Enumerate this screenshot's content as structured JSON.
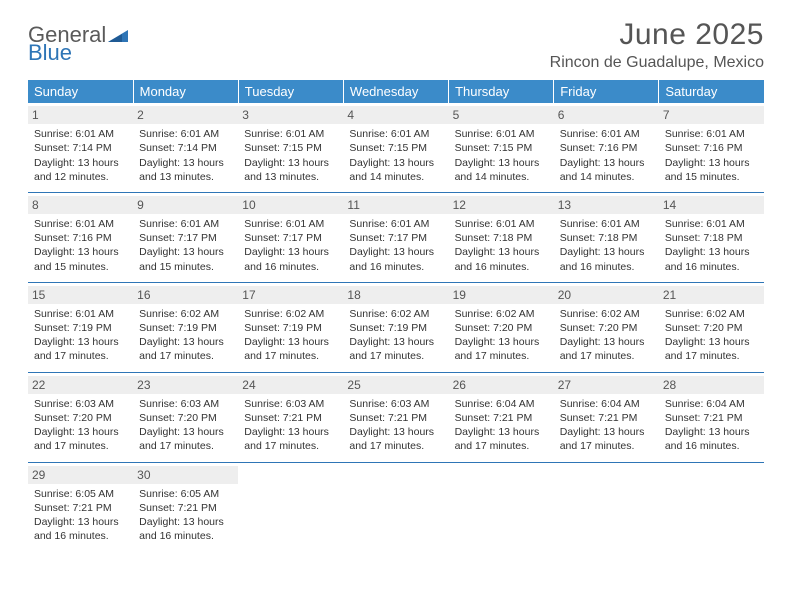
{
  "logo": {
    "line1": "General",
    "line2": "Blue"
  },
  "title": "June 2025",
  "location": "Rincon de Guadalupe, Mexico",
  "colors": {
    "header_bg": "#3b8bc9",
    "header_text": "#ffffff",
    "divider": "#2e75b6",
    "daynum_bg": "#eeeeee",
    "text": "#333333",
    "logo_gray": "#5a5a5a",
    "logo_blue": "#2e75b6"
  },
  "weekdays": [
    "Sunday",
    "Monday",
    "Tuesday",
    "Wednesday",
    "Thursday",
    "Friday",
    "Saturday"
  ],
  "days": [
    {
      "n": "1",
      "sr": "Sunrise: 6:01 AM",
      "ss": "Sunset: 7:14 PM",
      "dl": "Daylight: 13 hours and 12 minutes."
    },
    {
      "n": "2",
      "sr": "Sunrise: 6:01 AM",
      "ss": "Sunset: 7:14 PM",
      "dl": "Daylight: 13 hours and 13 minutes."
    },
    {
      "n": "3",
      "sr": "Sunrise: 6:01 AM",
      "ss": "Sunset: 7:15 PM",
      "dl": "Daylight: 13 hours and 13 minutes."
    },
    {
      "n": "4",
      "sr": "Sunrise: 6:01 AM",
      "ss": "Sunset: 7:15 PM",
      "dl": "Daylight: 13 hours and 14 minutes."
    },
    {
      "n": "5",
      "sr": "Sunrise: 6:01 AM",
      "ss": "Sunset: 7:15 PM",
      "dl": "Daylight: 13 hours and 14 minutes."
    },
    {
      "n": "6",
      "sr": "Sunrise: 6:01 AM",
      "ss": "Sunset: 7:16 PM",
      "dl": "Daylight: 13 hours and 14 minutes."
    },
    {
      "n": "7",
      "sr": "Sunrise: 6:01 AM",
      "ss": "Sunset: 7:16 PM",
      "dl": "Daylight: 13 hours and 15 minutes."
    },
    {
      "n": "8",
      "sr": "Sunrise: 6:01 AM",
      "ss": "Sunset: 7:16 PM",
      "dl": "Daylight: 13 hours and 15 minutes."
    },
    {
      "n": "9",
      "sr": "Sunrise: 6:01 AM",
      "ss": "Sunset: 7:17 PM",
      "dl": "Daylight: 13 hours and 15 minutes."
    },
    {
      "n": "10",
      "sr": "Sunrise: 6:01 AM",
      "ss": "Sunset: 7:17 PM",
      "dl": "Daylight: 13 hours and 16 minutes."
    },
    {
      "n": "11",
      "sr": "Sunrise: 6:01 AM",
      "ss": "Sunset: 7:17 PM",
      "dl": "Daylight: 13 hours and 16 minutes."
    },
    {
      "n": "12",
      "sr": "Sunrise: 6:01 AM",
      "ss": "Sunset: 7:18 PM",
      "dl": "Daylight: 13 hours and 16 minutes."
    },
    {
      "n": "13",
      "sr": "Sunrise: 6:01 AM",
      "ss": "Sunset: 7:18 PM",
      "dl": "Daylight: 13 hours and 16 minutes."
    },
    {
      "n": "14",
      "sr": "Sunrise: 6:01 AM",
      "ss": "Sunset: 7:18 PM",
      "dl": "Daylight: 13 hours and 16 minutes."
    },
    {
      "n": "15",
      "sr": "Sunrise: 6:01 AM",
      "ss": "Sunset: 7:19 PM",
      "dl": "Daylight: 13 hours and 17 minutes."
    },
    {
      "n": "16",
      "sr": "Sunrise: 6:02 AM",
      "ss": "Sunset: 7:19 PM",
      "dl": "Daylight: 13 hours and 17 minutes."
    },
    {
      "n": "17",
      "sr": "Sunrise: 6:02 AM",
      "ss": "Sunset: 7:19 PM",
      "dl": "Daylight: 13 hours and 17 minutes."
    },
    {
      "n": "18",
      "sr": "Sunrise: 6:02 AM",
      "ss": "Sunset: 7:19 PM",
      "dl": "Daylight: 13 hours and 17 minutes."
    },
    {
      "n": "19",
      "sr": "Sunrise: 6:02 AM",
      "ss": "Sunset: 7:20 PM",
      "dl": "Daylight: 13 hours and 17 minutes."
    },
    {
      "n": "20",
      "sr": "Sunrise: 6:02 AM",
      "ss": "Sunset: 7:20 PM",
      "dl": "Daylight: 13 hours and 17 minutes."
    },
    {
      "n": "21",
      "sr": "Sunrise: 6:02 AM",
      "ss": "Sunset: 7:20 PM",
      "dl": "Daylight: 13 hours and 17 minutes."
    },
    {
      "n": "22",
      "sr": "Sunrise: 6:03 AM",
      "ss": "Sunset: 7:20 PM",
      "dl": "Daylight: 13 hours and 17 minutes."
    },
    {
      "n": "23",
      "sr": "Sunrise: 6:03 AM",
      "ss": "Sunset: 7:20 PM",
      "dl": "Daylight: 13 hours and 17 minutes."
    },
    {
      "n": "24",
      "sr": "Sunrise: 6:03 AM",
      "ss": "Sunset: 7:21 PM",
      "dl": "Daylight: 13 hours and 17 minutes."
    },
    {
      "n": "25",
      "sr": "Sunrise: 6:03 AM",
      "ss": "Sunset: 7:21 PM",
      "dl": "Daylight: 13 hours and 17 minutes."
    },
    {
      "n": "26",
      "sr": "Sunrise: 6:04 AM",
      "ss": "Sunset: 7:21 PM",
      "dl": "Daylight: 13 hours and 17 minutes."
    },
    {
      "n": "27",
      "sr": "Sunrise: 6:04 AM",
      "ss": "Sunset: 7:21 PM",
      "dl": "Daylight: 13 hours and 17 minutes."
    },
    {
      "n": "28",
      "sr": "Sunrise: 6:04 AM",
      "ss": "Sunset: 7:21 PM",
      "dl": "Daylight: 13 hours and 16 minutes."
    },
    {
      "n": "29",
      "sr": "Sunrise: 6:05 AM",
      "ss": "Sunset: 7:21 PM",
      "dl": "Daylight: 13 hours and 16 minutes."
    },
    {
      "n": "30",
      "sr": "Sunrise: 6:05 AM",
      "ss": "Sunset: 7:21 PM",
      "dl": "Daylight: 13 hours and 16 minutes."
    }
  ]
}
